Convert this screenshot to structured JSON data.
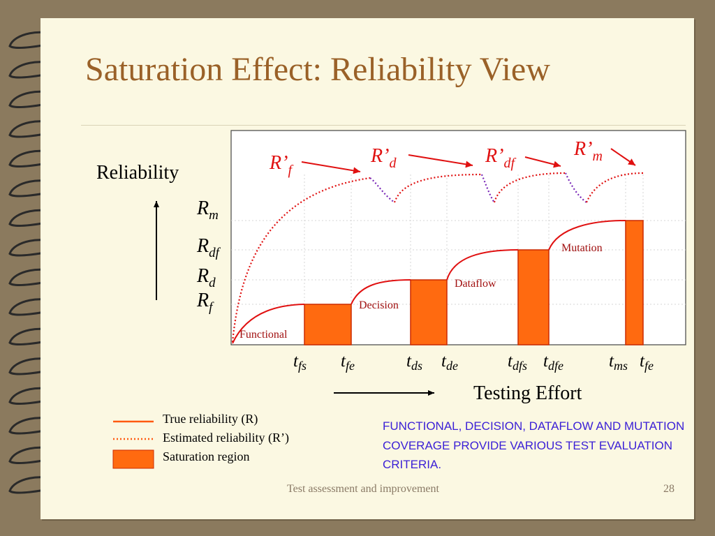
{
  "slide": {
    "title": "Saturation Effect: Reliability View",
    "footer_text": "Test assessment and improvement",
    "page_number": "28"
  },
  "diagram": {
    "y_axis_label": "Reliability",
    "x_axis_label": "Testing Effort",
    "levels": [
      {
        "main": "R",
        "sub": "m"
      },
      {
        "main": "R",
        "sub": "df"
      },
      {
        "main": "R",
        "sub": "d"
      },
      {
        "main": "R",
        "sub": "f"
      }
    ],
    "estimate_labels": [
      {
        "main": "R’",
        "sub": "f"
      },
      {
        "main": "R’",
        "sub": "d"
      },
      {
        "main": "R’",
        "sub": "df"
      },
      {
        "main": "R’",
        "sub": "m"
      }
    ],
    "region_labels": [
      "Functional",
      "Decision",
      "Dataflow",
      "Mutation"
    ],
    "time_labels": [
      {
        "main": "t",
        "sub": "fs"
      },
      {
        "main": "t",
        "sub": "fe"
      },
      {
        "main": "t",
        "sub": "ds"
      },
      {
        "main": "t",
        "sub": "de"
      },
      {
        "main": "t",
        "sub": "dfs"
      },
      {
        "main": "t",
        "sub": "dfe"
      },
      {
        "main": "t",
        "sub": "ms"
      },
      {
        "main": "t",
        "sub": "fe"
      }
    ]
  },
  "legend": [
    {
      "label": "True reliability (R)",
      "style": "solid"
    },
    {
      "label": "Estimated reliability (R’)",
      "style": "dotted"
    },
    {
      "label": "Saturation region",
      "style": "fill"
    }
  ],
  "note": "FUNCTIONAL, DECISION, DATAFLOW AND MUTATION COVERAGE PROVIDE VARIOUS TEST EVALUATION CRITERIA.",
  "colors": {
    "title": "#9a6128",
    "curve": "#e01010",
    "saturation": "#ff6a10",
    "note": "#3a1fd6",
    "estimate_label": "#e01010"
  }
}
